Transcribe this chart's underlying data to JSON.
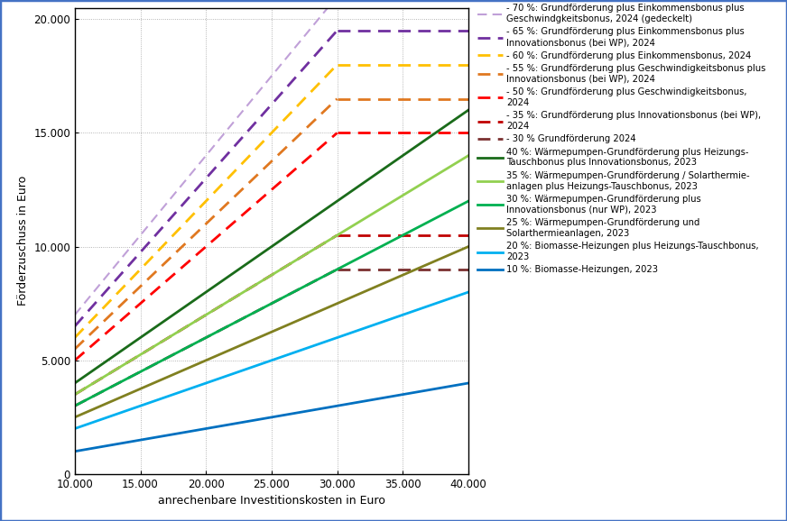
{
  "x_min": 10000,
  "x_max": 40000,
  "y_min": 0,
  "y_max": 20500,
  "y_axis_max_display": 20000,
  "xlabel": "anrechenbare Investitionskosten in Euro",
  "ylabel": "Förderzuschuss in Euro",
  "x_ticks": [
    10000,
    15000,
    20000,
    25000,
    30000,
    35000,
    40000
  ],
  "x_tick_labels": [
    "10.000",
    "15.000",
    "20.000",
    "25.000",
    "30.000",
    "35.000",
    "40.000"
  ],
  "y_ticks": [
    0,
    5000,
    10000,
    15000,
    20000
  ],
  "y_tick_labels": [
    "0",
    "5.000",
    "10.000",
    "15.000",
    "20.000"
  ],
  "lines": [
    {
      "rate": 0.7,
      "cap": null,
      "color": "#c0a0d8",
      "linestyle": "dashed",
      "linewidth": 1.5,
      "label": "- 70 %: Grundförderung plus Einkommensbonus plus\nGeschwindgkeitsbonus, 2024 (gedeckelt)"
    },
    {
      "rate": 0.65,
      "cap": 19500,
      "color": "#7030a0",
      "linestyle": "dashed",
      "linewidth": 2.0,
      "label": "- 65 %: Grundförderung plus Einkommensbonus plus\nInnovationsbonus (bei WP), 2024"
    },
    {
      "rate": 0.6,
      "cap": 18000,
      "color": "#ffc000",
      "linestyle": "dashed",
      "linewidth": 2.0,
      "label": "- 60 %: Grundförderung plus Einkommensbonus, 2024"
    },
    {
      "rate": 0.55,
      "cap": 16500,
      "color": "#e07820",
      "linestyle": "dashed",
      "linewidth": 2.0,
      "label": "- 55 %: Grundförderung plus Geschwindigkeitsbonus plus\nInnovationsbonus (bei WP), 2024"
    },
    {
      "rate": 0.5,
      "cap": 15000,
      "color": "#ff0000",
      "linestyle": "dashed",
      "linewidth": 2.0,
      "label": "- 50 %: Grundförderung plus Geschwindigkeitsbonus,\n2024"
    },
    {
      "rate": 0.35,
      "cap": 10500,
      "color": "#c00000",
      "linestyle": "dashed",
      "linewidth": 2.0,
      "label": "- 35 %: Grundförderung plus Innovationsbonus (bei WP),\n2024"
    },
    {
      "rate": 0.3,
      "cap": 9000,
      "color": "#7b3030",
      "linestyle": "dashed",
      "linewidth": 2.0,
      "label": "- 30 % Grundförderung 2024"
    },
    {
      "rate": 0.4,
      "cap": null,
      "color": "#1a6b1a",
      "linestyle": "solid",
      "linewidth": 2.0,
      "label": "40 %: Wärmepumpen-Grundförderung plus Heizungs-\nTauschbonus plus Innovationsbonus, 2023"
    },
    {
      "rate": 0.35,
      "cap": null,
      "color": "#92d050",
      "linestyle": "solid",
      "linewidth": 2.0,
      "label": "35 %: Wärmepumpen-Grundförderung / Solarthermie-\nanlagen plus Heizungs-Tauschbonus, 2023"
    },
    {
      "rate": 0.3,
      "cap": null,
      "color": "#00b050",
      "linestyle": "solid",
      "linewidth": 2.0,
      "label": "30 %: Wärmepumpen-Grundförderung plus\nInnovationsbonus (nur WP), 2023"
    },
    {
      "rate": 0.25,
      "cap": null,
      "color": "#808020",
      "linestyle": "solid",
      "linewidth": 2.0,
      "label": "25 %: Wärmepumpen-Grundförderung und\nSolarthermieanlagen, 2023"
    },
    {
      "rate": 0.2,
      "cap": null,
      "color": "#00b0f0",
      "linestyle": "solid",
      "linewidth": 2.0,
      "label": "20 %: Biomasse-Heizungen plus Heizungs-Tauschbonus,\n2023"
    },
    {
      "rate": 0.1,
      "cap": null,
      "color": "#0070c0",
      "linestyle": "solid",
      "linewidth": 2.0,
      "label": "10 %: Biomasse-Heizungen, 2023"
    }
  ],
  "cap_x": 30000,
  "background_color": "#ffffff",
  "border_color": "#4472c4",
  "grid_color": "#a0a0a0",
  "font_size_ticks": 8.5,
  "font_size_labels": 9,
  "font_size_legend": 7.2
}
